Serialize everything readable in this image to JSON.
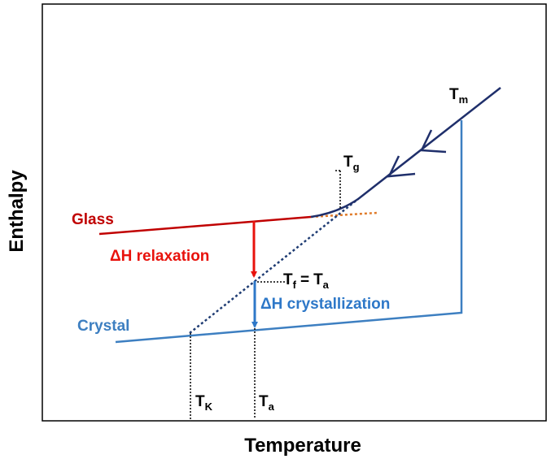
{
  "axes": {
    "x_label": "Temperature",
    "y_label": "Enthalpy"
  },
  "labels": {
    "glass": "Glass",
    "crystal": "Crystal",
    "relaxation": "ΔH relaxation",
    "crystallization": "ΔH crystallization",
    "tm": {
      "main": "T",
      "sub": "m"
    },
    "tg": {
      "main": "T",
      "sub": "g"
    },
    "tk": {
      "main": "T",
      "sub": "K"
    },
    "ta": {
      "main": "T",
      "sub": "a"
    },
    "tf_ta": {
      "left": {
        "main": "T",
        "sub": "f"
      },
      "sep": "=",
      "right": {
        "main": "T",
        "sub": "a"
      }
    }
  }
}
